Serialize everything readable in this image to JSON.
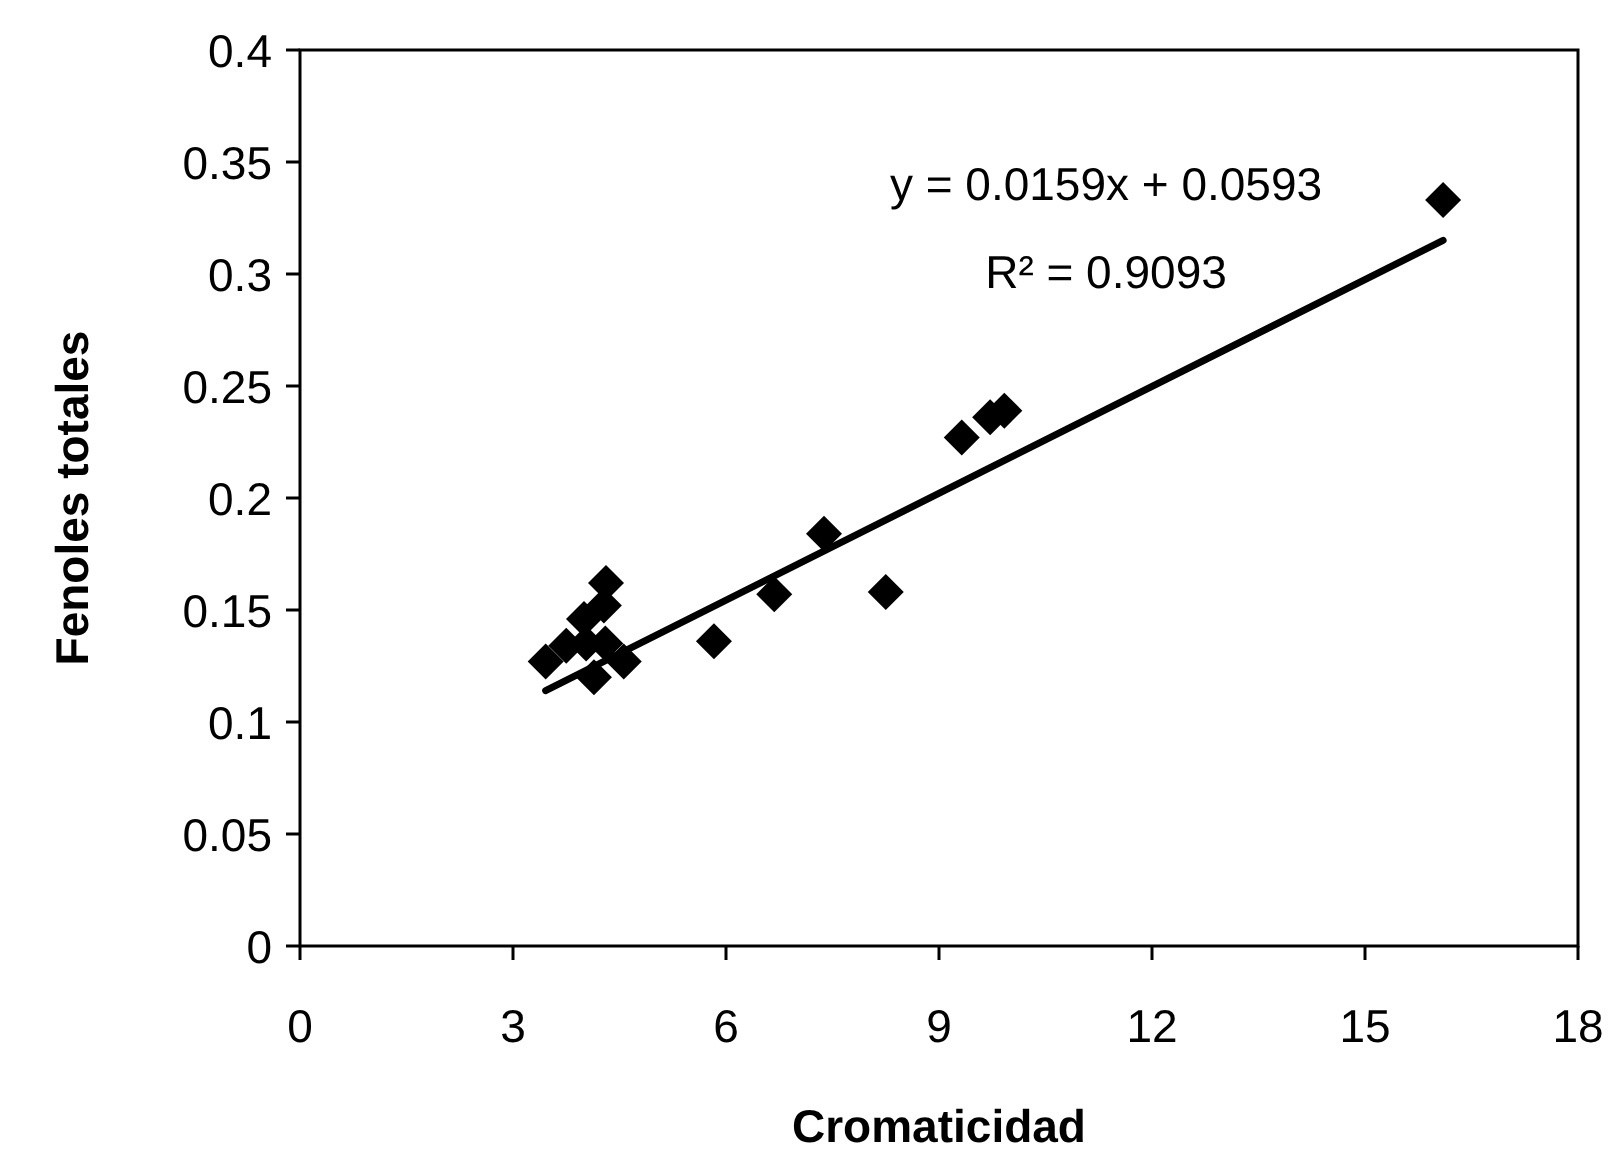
{
  "chart_data": {
    "type": "scatter",
    "xlabel": "Cromaticidad",
    "ylabel": "Fenoles totales",
    "xlim": [
      0,
      18
    ],
    "xticks": [
      0,
      3,
      6,
      9,
      12,
      15,
      18
    ],
    "ylim": [
      0,
      0.4
    ],
    "yticks": [
      0,
      0.05,
      0.1,
      0.15,
      0.2,
      0.25,
      0.3,
      0.35,
      0.4
    ],
    "grid": false,
    "marker": "diamond",
    "series": [
      {
        "color": "#000000",
        "x": [
          3.46,
          3.75,
          4.0,
          4.03,
          4.14,
          4.28,
          4.3,
          4.31,
          4.56,
          5.83,
          6.68,
          7.38,
          8.25,
          9.32,
          9.72,
          9.92,
          16.1
        ],
        "values": [
          0.127,
          0.134,
          0.146,
          0.135,
          0.12,
          0.152,
          0.135,
          0.162,
          0.127,
          0.136,
          0.157,
          0.184,
          0.158,
          0.227,
          0.236,
          0.239,
          0.333
        ]
      },
      {
        "type": "line",
        "color": "#000000",
        "marker": "none",
        "line_style": "solid",
        "x": [
          3.46,
          16.1
        ],
        "values": [
          0.114,
          0.315
        ]
      }
    ],
    "annotations": [
      "y = 0.0159x + 0.0593",
      "R² = 0.9093"
    ]
  }
}
